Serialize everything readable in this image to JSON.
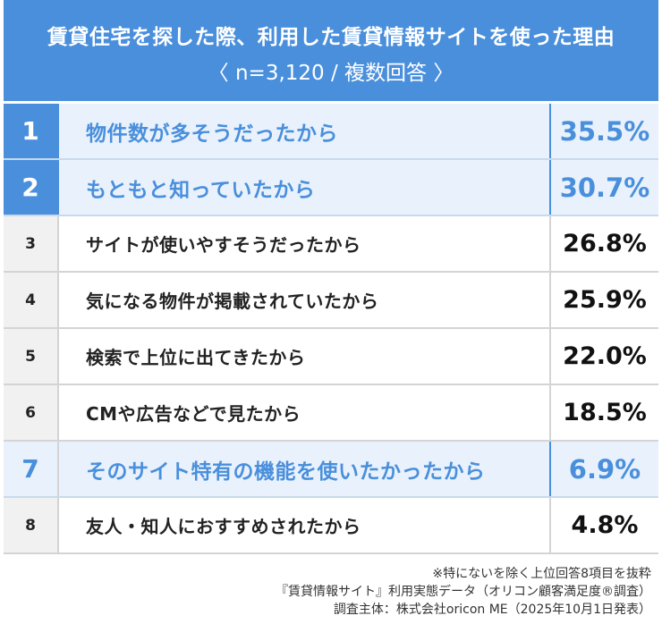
{
  "header": {
    "title": "賃貸住宅を探した際、利用した賃貸情報サイトを使った理由",
    "subtitle": "〈 n=3,120 / 複数回答 〉"
  },
  "chart_data": {
    "type": "table",
    "title": "賃貸住宅を探した際、利用した賃貸情報サイトを使った理由",
    "subtitle": "〈 n=3,120 / 複数回答 〉",
    "rows": [
      {
        "rank": "1",
        "label": "物件数が多そうだったから",
        "value": 35.5,
        "value_text": "35.5%",
        "highlight": true
      },
      {
        "rank": "2",
        "label": "もともと知っていたから",
        "value": 30.7,
        "value_text": "30.7%",
        "highlight": true
      },
      {
        "rank": "3",
        "label": "サイトが使いやすそうだったから",
        "value": 26.8,
        "value_text": "26.8%",
        "highlight": false
      },
      {
        "rank": "4",
        "label": "気になる物件が掲載されていたから",
        "value": 25.9,
        "value_text": "25.9%",
        "highlight": false
      },
      {
        "rank": "5",
        "label": "検索で上位に出てきたから",
        "value": 22.0,
        "value_text": "22.0%",
        "highlight": false
      },
      {
        "rank": "6",
        "label": "CMや広告などで見たから",
        "value": 18.5,
        "value_text": "18.5%",
        "highlight": false
      },
      {
        "rank": "7",
        "label": "そのサイト特有の機能を使いたかったから",
        "value": 6.9,
        "value_text": "6.9%",
        "highlight": true
      },
      {
        "rank": "8",
        "label": "友人・知人におすすめされたから",
        "value": 4.8,
        "value_text": "4.8%",
        "highlight": false
      }
    ]
  },
  "notes": [
    "※特にないを除く上位回答8項目を抜粋",
    "『賃貸情報サイト』利用実態データ（オリコン顧客満足度®調査）",
    "調査主体：株式会社oricon ME（2025年10月1日発表）"
  ],
  "colors": {
    "accent": "#4a8fdc",
    "highlight_bg": "#e9f2fc",
    "rank_bg": "#f1f1f1"
  }
}
